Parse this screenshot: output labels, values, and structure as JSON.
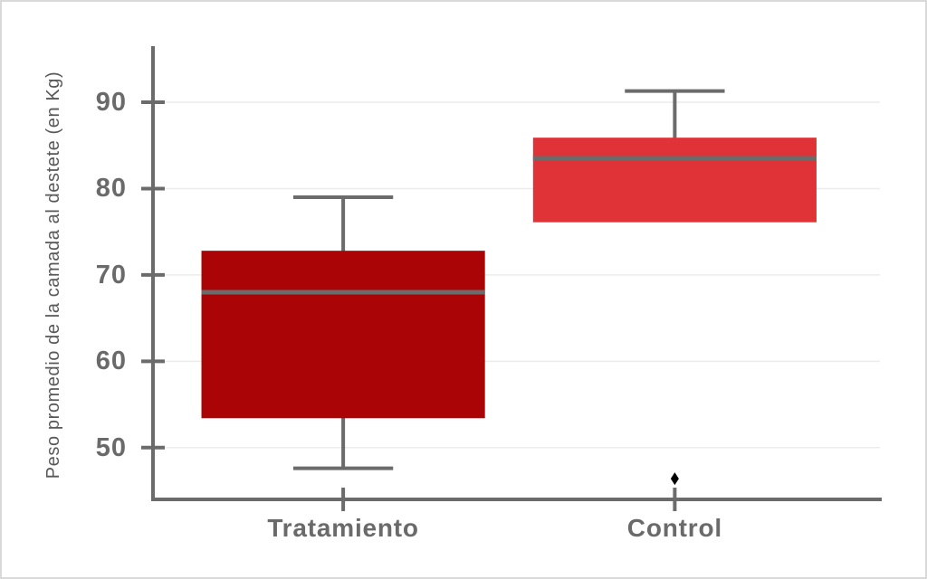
{
  "figure": {
    "background_color": "#ffffff",
    "border_color": "#d9d9d9"
  },
  "chart_data": {
    "type": "boxplot",
    "title": "",
    "xlabel": "",
    "ylabel": "Peso promedio de la camada al destete (en Kg)",
    "categories": [
      "Tratamiento",
      "Control"
    ],
    "y_ticks": [
      50,
      60,
      70,
      80,
      90
    ],
    "ylim": [
      44,
      96.5
    ],
    "grid": "horizontal",
    "legend_position": "none",
    "series": [
      {
        "name": "Tratamiento",
        "whisker_low": 47.6,
        "q1": 53.4,
        "median": 68.0,
        "q3": 72.8,
        "whisker_high": 79.0,
        "outliers": [],
        "box_color": "#aa0407",
        "x_frac": 0.261
      },
      {
        "name": "Control",
        "whisker_low": null,
        "q1": 76.1,
        "median": 83.5,
        "q3": 85.9,
        "whisker_high": 91.3,
        "outliers": [
          46.4
        ],
        "box_color": "#e03337",
        "x_frac": 0.716
      }
    ],
    "layout": {
      "box_width_frac": 0.389,
      "cap_width_frac": 0.137
    },
    "colors": {
      "line": "#6b6b6b",
      "grid": "#ececec",
      "tick_label": "#6a6a6a",
      "axis_label": "#58585a",
      "outlier": "#000000"
    }
  }
}
